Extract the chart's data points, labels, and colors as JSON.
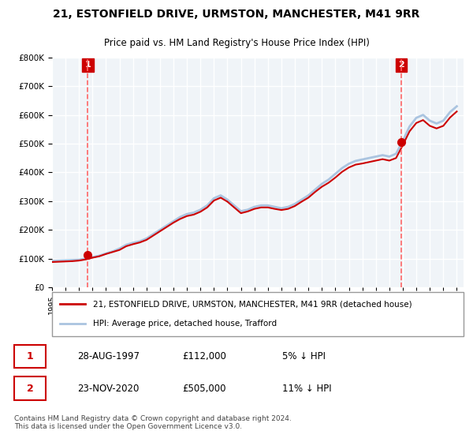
{
  "title": "21, ESTONFIELD DRIVE, URMSTON, MANCHESTER, M41 9RR",
  "subtitle": "Price paid vs. HM Land Registry's House Price Index (HPI)",
  "legend_entry1": "21, ESTONFIELD DRIVE, URMSTON, MANCHESTER, M41 9RR (detached house)",
  "legend_entry2": "HPI: Average price, detached house, Trafford",
  "annotation1_label": "1",
  "annotation1_date": "28-AUG-1997",
  "annotation1_price": "£112,000",
  "annotation1_hpi": "5% ↓ HPI",
  "annotation2_label": "2",
  "annotation2_date": "23-NOV-2020",
  "annotation2_price": "£505,000",
  "annotation2_hpi": "11% ↓ HPI",
  "footnote": "Contains HM Land Registry data © Crown copyright and database right 2024.\nThis data is licensed under the Open Government Licence v3.0.",
  "hpi_color": "#aac4e0",
  "price_color": "#cc0000",
  "marker_color": "#cc0000",
  "dashed_line_color": "#ff6666",
  "annotation_box_color": "#cc0000",
  "background_color": "#ffffff",
  "plot_bg_color": "#f0f4f8",
  "grid_color": "#ffffff",
  "ylim": [
    0,
    800000
  ],
  "yticks": [
    0,
    100000,
    200000,
    300000,
    400000,
    500000,
    600000,
    700000,
    800000
  ],
  "xlim_start": 1995.0,
  "xlim_end": 2025.5,
  "xtick_years": [
    1995,
    1996,
    1997,
    1998,
    1999,
    2000,
    2001,
    2002,
    2003,
    2004,
    2005,
    2006,
    2007,
    2008,
    2009,
    2010,
    2011,
    2012,
    2013,
    2014,
    2015,
    2016,
    2017,
    2018,
    2019,
    2020,
    2021,
    2022,
    2023,
    2024,
    2025
  ],
  "sale1_x": 1997.65,
  "sale1_y": 112000,
  "sale2_x": 2020.9,
  "sale2_y": 505000,
  "hpi_x": [
    1995.0,
    1995.5,
    1996.0,
    1996.5,
    1997.0,
    1997.5,
    1998.0,
    1998.5,
    1999.0,
    1999.5,
    2000.0,
    2000.5,
    2001.0,
    2001.5,
    2002.0,
    2002.5,
    2003.0,
    2003.5,
    2004.0,
    2004.5,
    2005.0,
    2005.5,
    2006.0,
    2006.5,
    2007.0,
    2007.5,
    2008.0,
    2008.5,
    2009.0,
    2009.5,
    2010.0,
    2010.5,
    2011.0,
    2011.5,
    2012.0,
    2012.5,
    2013.0,
    2013.5,
    2014.0,
    2014.5,
    2015.0,
    2015.5,
    2016.0,
    2016.5,
    2017.0,
    2017.5,
    2018.0,
    2018.5,
    2019.0,
    2019.5,
    2020.0,
    2020.5,
    2021.0,
    2021.5,
    2022.0,
    2022.5,
    2023.0,
    2023.5,
    2024.0,
    2024.5,
    2025.0
  ],
  "hpi_y": [
    92000,
    93000,
    94000,
    95000,
    96000,
    100000,
    105000,
    110000,
    118000,
    125000,
    135000,
    148000,
    155000,
    160000,
    170000,
    185000,
    200000,
    215000,
    230000,
    245000,
    255000,
    260000,
    270000,
    285000,
    310000,
    320000,
    305000,
    285000,
    265000,
    270000,
    280000,
    285000,
    285000,
    280000,
    275000,
    280000,
    290000,
    305000,
    320000,
    340000,
    360000,
    375000,
    395000,
    415000,
    430000,
    440000,
    445000,
    450000,
    455000,
    460000,
    455000,
    465000,
    510000,
    560000,
    590000,
    600000,
    580000,
    570000,
    580000,
    610000,
    630000
  ],
  "price_x": [
    1995.0,
    1995.5,
    1996.0,
    1996.5,
    1997.0,
    1997.5,
    1998.0,
    1998.5,
    1999.0,
    1999.5,
    2000.0,
    2000.5,
    2001.0,
    2001.5,
    2002.0,
    2002.5,
    2003.0,
    2003.5,
    2004.0,
    2004.5,
    2005.0,
    2005.5,
    2006.0,
    2006.5,
    2007.0,
    2007.5,
    2008.0,
    2008.5,
    2009.0,
    2009.5,
    2010.0,
    2010.5,
    2011.0,
    2011.5,
    2012.0,
    2012.5,
    2013.0,
    2013.5,
    2014.0,
    2014.5,
    2015.0,
    2015.5,
    2016.0,
    2016.5,
    2017.0,
    2017.5,
    2018.0,
    2018.5,
    2019.0,
    2019.5,
    2020.0,
    2020.5,
    2021.0,
    2021.5,
    2022.0,
    2022.5,
    2023.0,
    2023.5,
    2024.0,
    2024.5,
    2025.0
  ],
  "price_y": [
    88000,
    89000,
    90000,
    91000,
    93000,
    97000,
    103000,
    108000,
    116000,
    123000,
    130000,
    143000,
    150000,
    156000,
    165000,
    180000,
    195000,
    210000,
    225000,
    238000,
    248000,
    253000,
    263000,
    278000,
    302000,
    312000,
    298000,
    278000,
    258000,
    264000,
    273000,
    278000,
    278000,
    273000,
    269000,
    273000,
    283000,
    298000,
    312000,
    332000,
    350000,
    364000,
    382000,
    402000,
    417000,
    427000,
    431000,
    436000,
    441000,
    446000,
    441000,
    450000,
    495000,
    543000,
    572000,
    582000,
    562000,
    553000,
    562000,
    591000,
    612000
  ]
}
